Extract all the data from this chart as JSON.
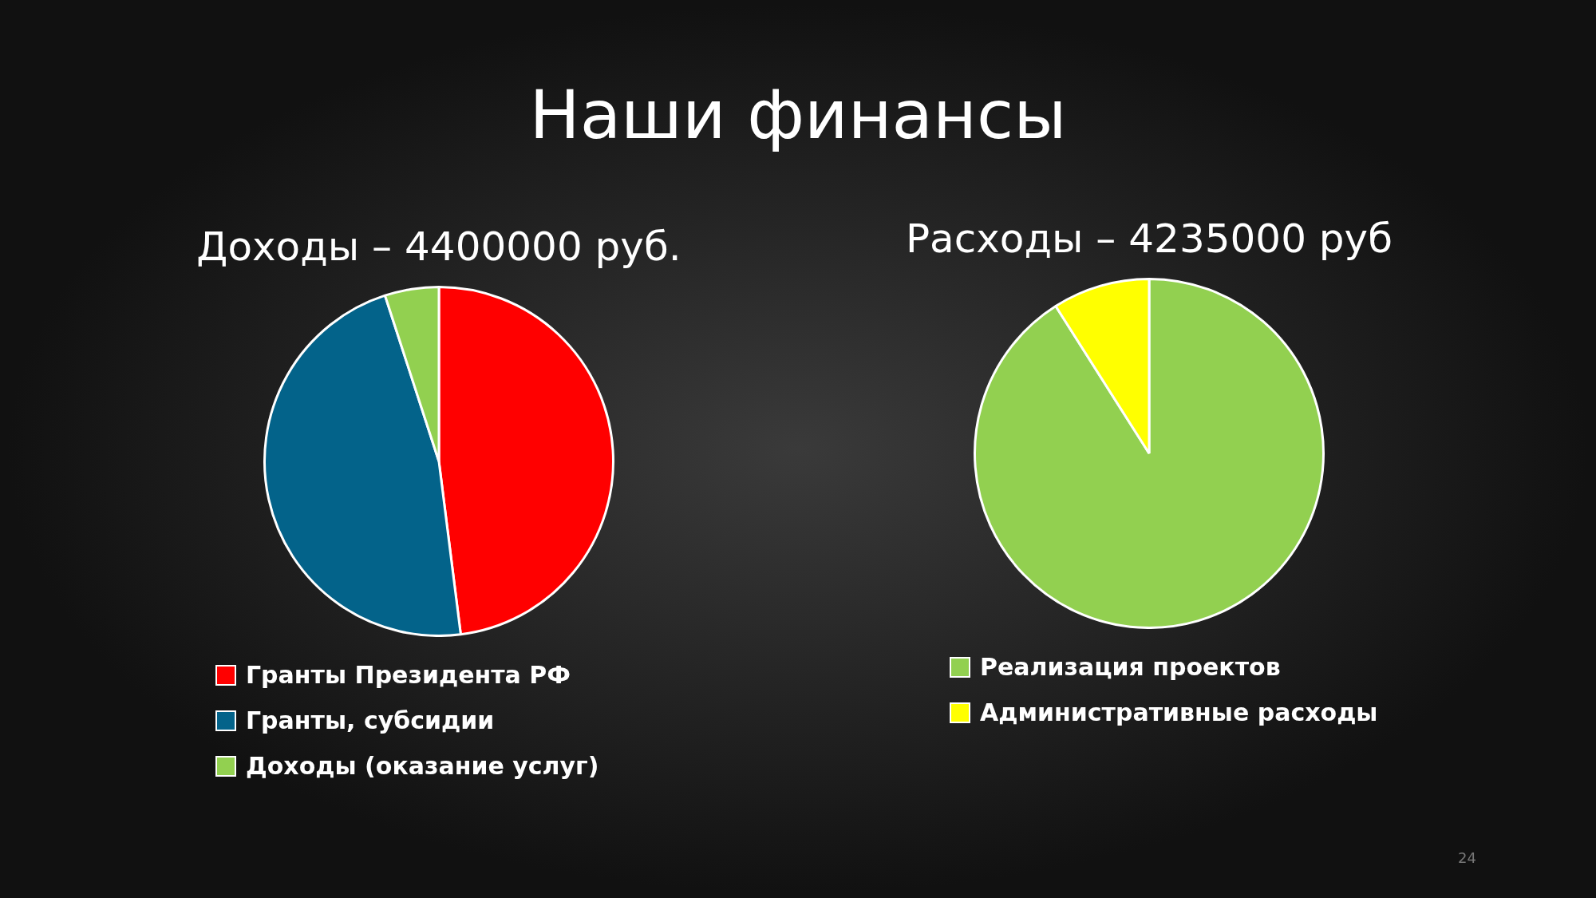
{
  "chart_data": [
    {
      "type": "pie",
      "title": "Доходы – 4400000 руб.",
      "categories": [
        "Гранты Президента РФ",
        "Гранты, субсидии",
        "Доходы (оказание услуг)"
      ],
      "values": [
        48,
        47,
        5
      ],
      "colors": [
        "#ff0000",
        "#03638a",
        "#92d050"
      ],
      "legend": "bottom",
      "annotations": [
        "Наши финансы"
      ]
    },
    {
      "type": "pie",
      "title": "Расходы – 4235000 руб",
      "categories": [
        "Реализация проектов",
        "Административные расходы"
      ],
      "values": [
        91,
        9
      ],
      "colors": [
        "#92d050",
        "#ffff00"
      ],
      "legend": "bottom",
      "annotations": [
        "24"
      ]
    }
  ]
}
